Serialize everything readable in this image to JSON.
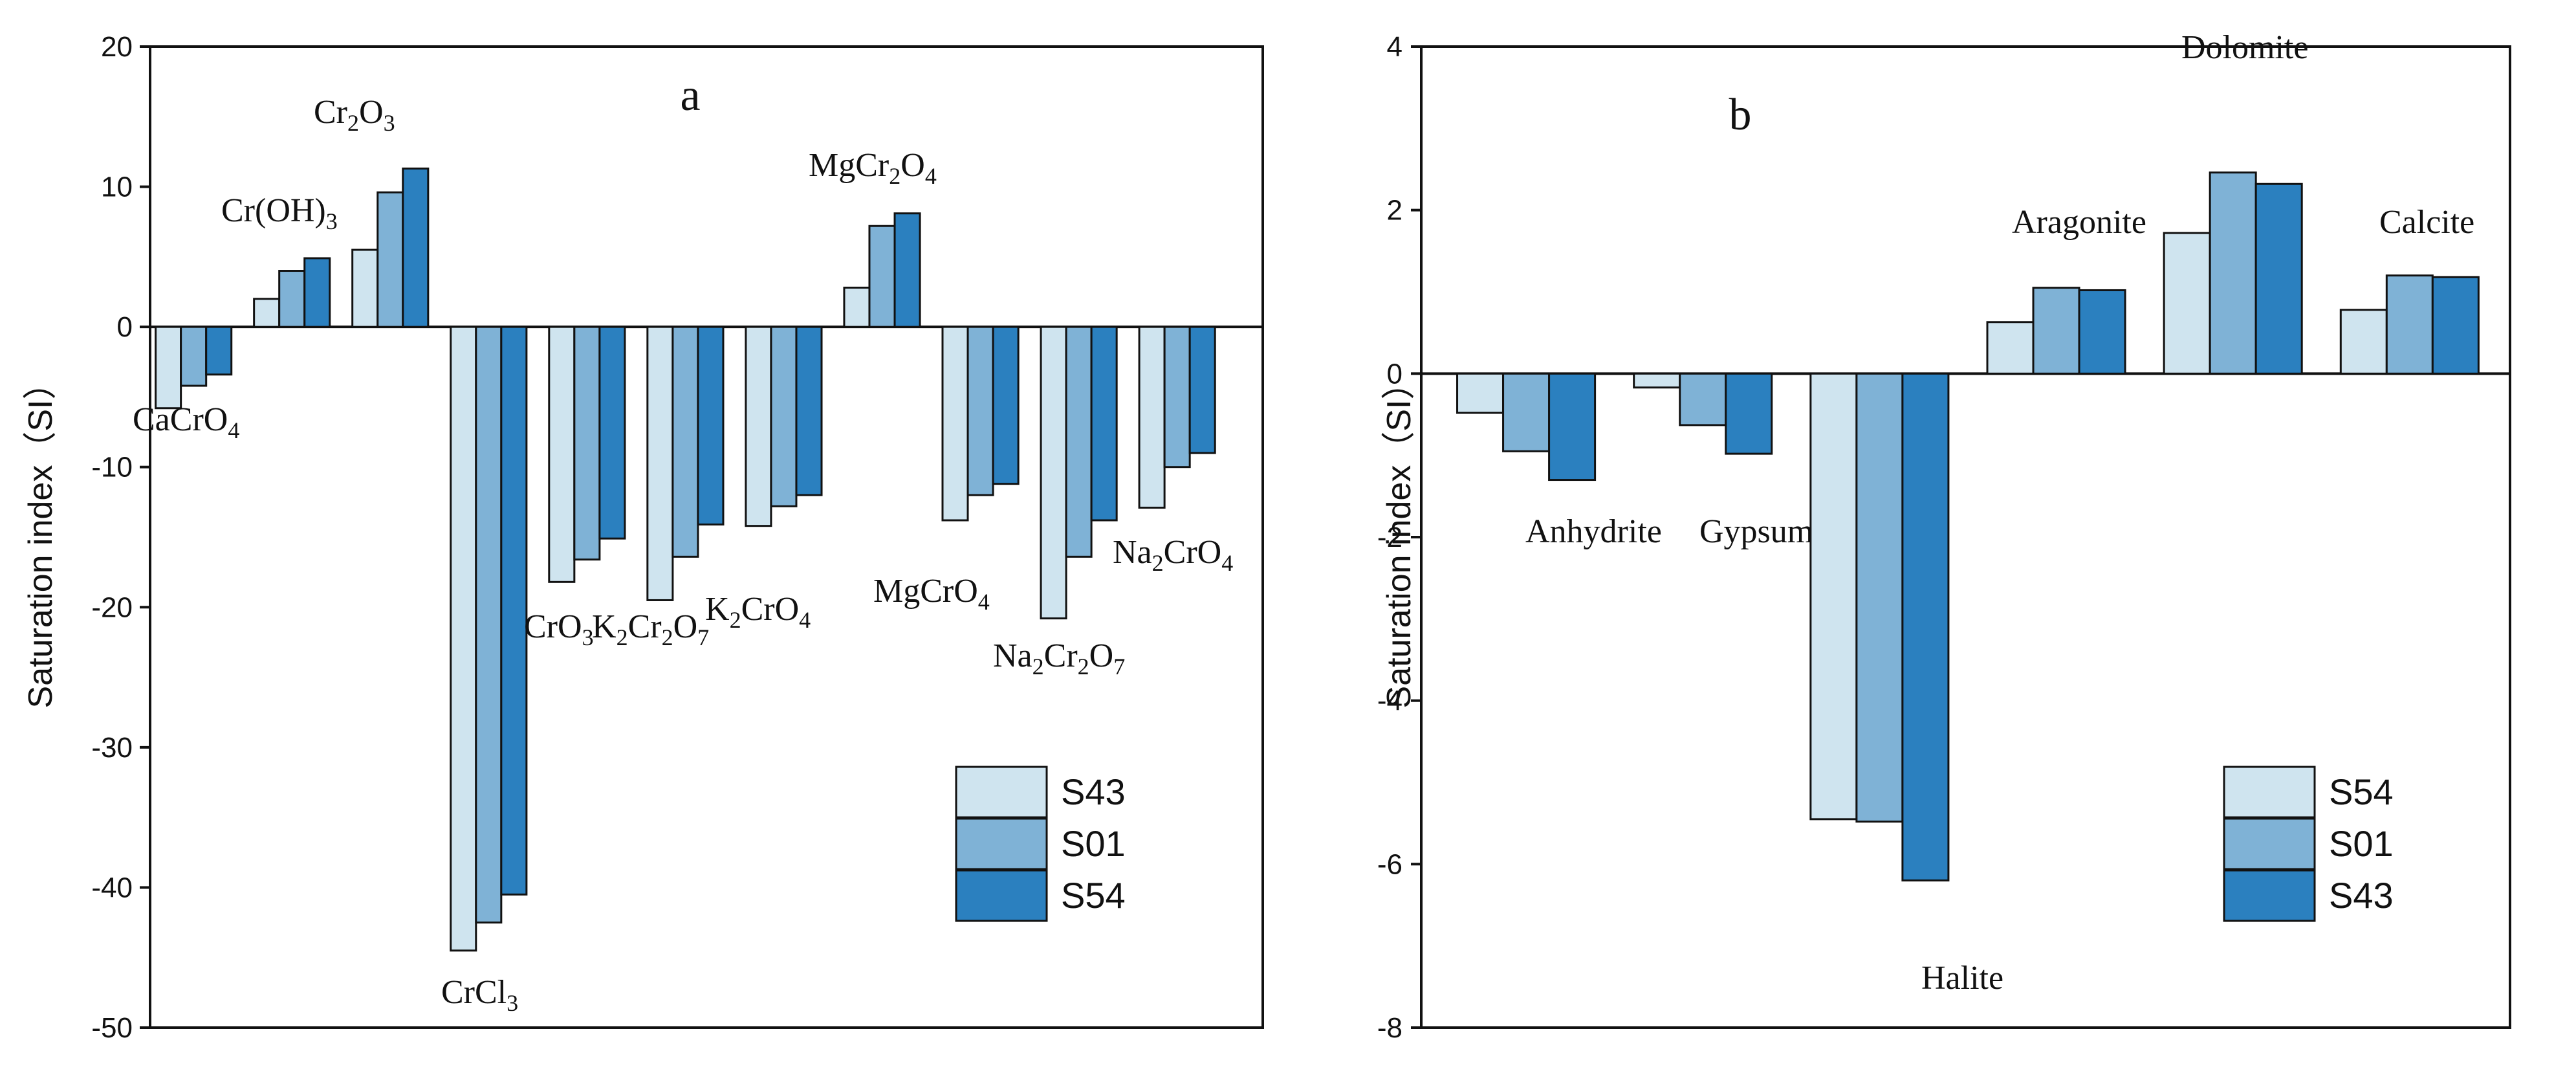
{
  "chart_data": [
    {
      "type": "bar",
      "panel": "a",
      "ylabel": "Saturation index（SI）",
      "ylim": [
        -50,
        20
      ],
      "yticks": [
        20,
        10,
        0,
        -10,
        -20,
        -30,
        -40,
        -50
      ],
      "legend_position": "bottom-right",
      "categories": [
        {
          "label": "CaCrO4",
          "base": "CaCrO",
          "sub": "4",
          "parts": [
            [
              "CaCrO",
              false
            ],
            [
              "4",
              true
            ]
          ]
        },
        {
          "label": "Cr(OH)3",
          "parts": [
            [
              "Cr(OH)",
              false
            ],
            [
              "3",
              true
            ]
          ]
        },
        {
          "label": "Cr2O3",
          "parts": [
            [
              "Cr",
              false
            ],
            [
              "2",
              true
            ],
            [
              "O",
              false
            ],
            [
              "3",
              true
            ]
          ]
        },
        {
          "label": "CrCl3",
          "parts": [
            [
              "CrCl",
              false
            ],
            [
              "3",
              true
            ]
          ]
        },
        {
          "label": "CrO3",
          "parts": [
            [
              "CrO",
              false
            ],
            [
              "3",
              true
            ]
          ]
        },
        {
          "label": "K2Cr2O7",
          "parts": [
            [
              "K",
              false
            ],
            [
              "2",
              true
            ],
            [
              "Cr",
              false
            ],
            [
              "2",
              true
            ],
            [
              "O",
              false
            ],
            [
              "7",
              true
            ]
          ]
        },
        {
          "label": "K2CrO4",
          "parts": [
            [
              "K",
              false
            ],
            [
              "2",
              true
            ],
            [
              "CrO",
              false
            ],
            [
              "4",
              true
            ]
          ]
        },
        {
          "label": "MgCr2O4",
          "parts": [
            [
              "MgCr",
              false
            ],
            [
              "2",
              true
            ],
            [
              "O",
              false
            ],
            [
              "4",
              true
            ]
          ]
        },
        {
          "label": "MgCrO4",
          "parts": [
            [
              "MgCrO",
              false
            ],
            [
              "4",
              true
            ]
          ]
        },
        {
          "label": "Na2Cr2O7",
          "parts": [
            [
              "Na",
              false
            ],
            [
              "2",
              true
            ],
            [
              "Cr",
              false
            ],
            [
              "2",
              true
            ],
            [
              "O",
              false
            ],
            [
              "7",
              true
            ]
          ]
        },
        {
          "label": "Na2CrO4",
          "parts": [
            [
              "Na",
              false
            ],
            [
              "2",
              true
            ],
            [
              "CrO",
              false
            ],
            [
              "4",
              true
            ]
          ]
        }
      ],
      "series": [
        {
          "name": "S43",
          "color": "#cfe4ef",
          "values": [
            -5.8,
            2.0,
            5.5,
            -44.5,
            -18.2,
            -19.5,
            -14.2,
            2.8,
            -13.8,
            -20.8,
            -12.9
          ]
        },
        {
          "name": "S01",
          "color": "#7fb2d6",
          "values": [
            -4.2,
            4.0,
            9.6,
            -42.5,
            -16.6,
            -16.4,
            -12.8,
            7.2,
            -12.0,
            -16.4,
            -10.0
          ]
        },
        {
          "name": "S54",
          "color": "#2b80bf",
          "values": [
            -3.4,
            4.9,
            11.3,
            -40.5,
            -15.1,
            -14.1,
            -12.0,
            8.1,
            -11.2,
            -13.8,
            -9.0
          ]
        }
      ]
    },
    {
      "type": "bar",
      "panel": "b",
      "ylabel": "Saturation index（SI）",
      "ylim": [
        -8,
        4
      ],
      "yticks": [
        4,
        2,
        0,
        -2,
        -4,
        -6,
        -8
      ],
      "legend_position": "bottom-right",
      "categories": [
        {
          "label": "Anhydrite",
          "parts": [
            [
              "Anhydrite",
              false
            ]
          ]
        },
        {
          "label": "Gypsum",
          "parts": [
            [
              "Gypsum",
              false
            ]
          ]
        },
        {
          "label": "Halite",
          "parts": [
            [
              "Halite",
              false
            ]
          ]
        },
        {
          "label": "Aragonite",
          "parts": [
            [
              "Aragonite",
              false
            ]
          ]
        },
        {
          "label": "Dolomite",
          "parts": [
            [
              "Dolomite",
              false
            ]
          ]
        },
        {
          "label": "Calcite",
          "parts": [
            [
              "Calcite",
              false
            ]
          ]
        }
      ],
      "series": [
        {
          "name": "S54",
          "color": "#cfe4ef",
          "values": [
            -0.48,
            -0.17,
            -5.45,
            0.63,
            1.72,
            0.78
          ]
        },
        {
          "name": "S01",
          "color": "#7fb2d6",
          "values": [
            -0.95,
            -0.63,
            -5.48,
            1.05,
            2.46,
            1.2
          ]
        },
        {
          "name": "S43",
          "color": "#2b80bf",
          "values": [
            -1.3,
            -0.98,
            -6.2,
            1.02,
            2.32,
            1.18
          ]
        }
      ]
    }
  ]
}
